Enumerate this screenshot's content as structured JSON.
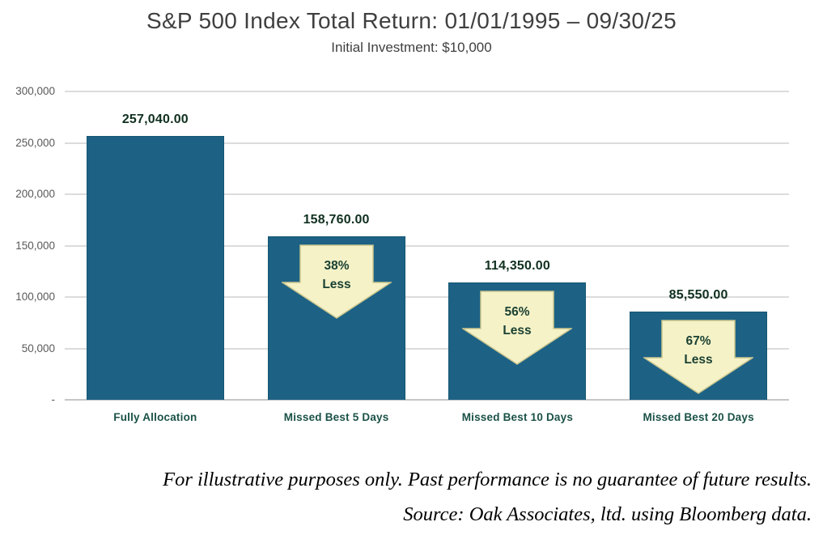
{
  "chart": {
    "title": "S&P 500 Index Total Return: 01/01/1995 – 09/30/25",
    "subtitle": "Initial Investment: $10,000"
  },
  "chart_data": {
    "type": "bar",
    "categories": [
      "Fully Allocation",
      "Missed Best 5 Days",
      "Missed Best 10 Days",
      "Missed Best 20 Days"
    ],
    "values": [
      257040,
      158760,
      114350,
      85550
    ],
    "value_labels": [
      "257,040.00",
      "158,760.00",
      "114,350.00",
      "85,550.00"
    ],
    "arrows": [
      null,
      {
        "pct": "38%",
        "word": "Less"
      },
      {
        "pct": "56%",
        "word": "Less"
      },
      {
        "pct": "67%",
        "word": "Less"
      }
    ],
    "title": "S&P 500 Index Total Return: 01/01/1995 – 09/30/25",
    "subtitle": "Initial Investment: $10,000",
    "xlabel": "",
    "ylabel": "",
    "ylim": [
      0,
      300000
    ],
    "ytick_step": 50000,
    "ytick_labels": [
      "-",
      "50,000",
      "100,000",
      "150,000",
      "200,000",
      "250,000",
      "300,000"
    ],
    "grid": true,
    "legend": false
  },
  "colors": {
    "bar_fill": "#1d6285",
    "bar_border": "#155672",
    "arrow_fill": "#f5f2c8",
    "arrow_border": "#ccc78e",
    "arrow_text": "#1b4132",
    "value_label": "#10301f",
    "category_label": "#1a5147",
    "gridline": "#dcdcdc",
    "axis_label": "#595959",
    "title_text": "#3f3f3f"
  },
  "footer": {
    "disclaimer": "For illustrative purposes only. Past performance is no guarantee of future results.",
    "source": "Source: Oak Associates, ltd. using Bloomberg data."
  }
}
